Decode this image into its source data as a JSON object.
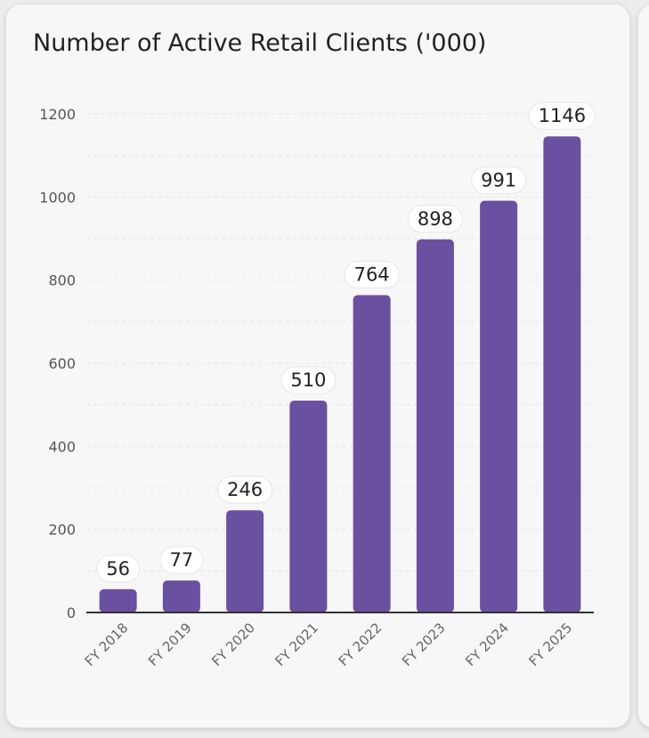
{
  "chart_data": {
    "type": "bar",
    "title": "Number of Active Retail Clients ('000)",
    "xlabel": "",
    "ylabel": "",
    "categories": [
      "FY 2018",
      "FY 2019",
      "FY 2020",
      "FY 2021",
      "FY 2022",
      "FY 2023",
      "FY 2024",
      "FY 2025"
    ],
    "values": [
      56,
      77,
      246,
      510,
      764,
      898,
      991,
      1146
    ],
    "ylim": [
      0,
      1200
    ],
    "yticks": [
      0,
      200,
      400,
      600,
      800,
      1000,
      1200
    ],
    "grid": true,
    "bar_color": "#6a50a0",
    "label_bg": "#ffffff"
  }
}
